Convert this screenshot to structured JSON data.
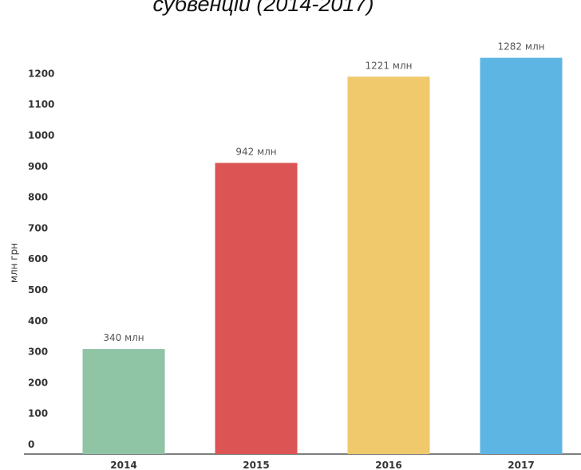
{
  "chart_data": {
    "type": "bar",
    "title": "субвенцій (2014-2017)",
    "y_label": "млн грн",
    "categories": [
      "2014",
      "2015",
      "2016",
      "2017"
    ],
    "values": [
      340,
      942,
      1221,
      1282
    ],
    "value_labels": [
      "340 млн",
      "942 млн",
      "1221 млн",
      "1282 млн"
    ],
    "colors": [
      "#8fc4a5",
      "#dc5454",
      "#efc96b",
      "#5db5e3"
    ],
    "ylim": [
      0,
      1300
    ],
    "yticks": [
      0,
      100,
      200,
      300,
      400,
      500,
      600,
      700,
      800,
      900,
      1000,
      1100,
      1200
    ],
    "grid": false
  }
}
